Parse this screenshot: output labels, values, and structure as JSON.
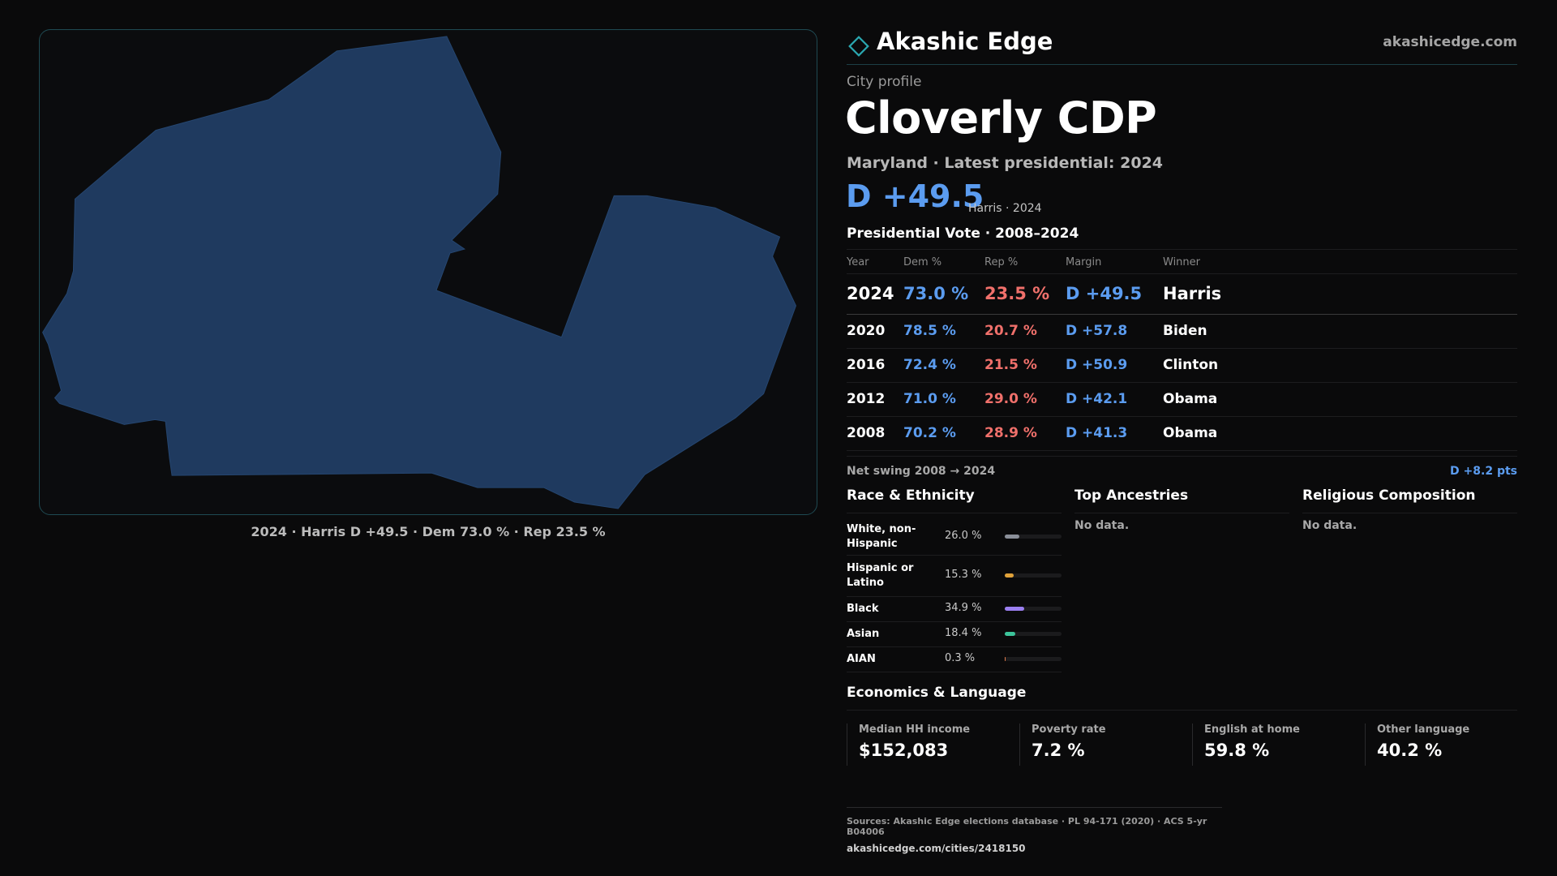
{
  "brand": {
    "name": "Akashic Edge",
    "url": "akashicedge.com"
  },
  "colors": {
    "dem": "#5b9cf0",
    "rep": "#f0706b",
    "accent": "#2aa7b0",
    "map_fill": "#1f3a5f"
  },
  "map": {
    "caption": "2024 · Harris D +49.5 · Dem 73.0 % · Rep 23.5 %"
  },
  "profile": {
    "kicker": "City profile",
    "city": "Cloverly CDP",
    "subline": "Maryland · Latest presidential: 2024",
    "margin": "D +49.5",
    "margin_note": "Harris · 2024"
  },
  "votes": {
    "title": "Presidential Vote · 2008–2024",
    "headers": {
      "year": "Year",
      "dem": "Dem %",
      "rep": "Rep %",
      "margin": "Margin",
      "winner": "Winner"
    },
    "rows": [
      {
        "year": "2024",
        "dem": "73.0 %",
        "rep": "23.5 %",
        "margin": "D +49.5",
        "winner": "Harris"
      },
      {
        "year": "2020",
        "dem": "78.5 %",
        "rep": "20.7 %",
        "margin": "D +57.8",
        "winner": "Biden"
      },
      {
        "year": "2016",
        "dem": "72.4 %",
        "rep": "21.5 %",
        "margin": "D +50.9",
        "winner": "Clinton"
      },
      {
        "year": "2012",
        "dem": "71.0 %",
        "rep": "29.0 %",
        "margin": "D +42.1",
        "winner": "Obama"
      },
      {
        "year": "2008",
        "dem": "70.2 %",
        "rep": "28.9 %",
        "margin": "D +41.3",
        "winner": "Obama"
      }
    ],
    "swing_label": "Net swing 2008 → 2024",
    "swing_value": "D +8.2 pts"
  },
  "race": {
    "title": "Race & Ethnicity",
    "items": [
      {
        "label": "White, non-Hispanic",
        "pct": "26.0 %",
        "value": 26.0,
        "color": "#8a8f99"
      },
      {
        "label": "Hispanic or Latino",
        "pct": "15.3 %",
        "value": 15.3,
        "color": "#e0a23a"
      },
      {
        "label": "Black",
        "pct": "34.9 %",
        "value": 34.9,
        "color": "#9b7ff0"
      },
      {
        "label": "Asian",
        "pct": "18.4 %",
        "value": 18.4,
        "color": "#3cc49a"
      },
      {
        "label": "AIAN",
        "pct": "0.3 %",
        "value": 0.3,
        "color": "#e07a4a"
      }
    ]
  },
  "ancestries": {
    "title": "Top Ancestries",
    "empty": "No data."
  },
  "religion": {
    "title": "Religious Composition",
    "empty": "No data."
  },
  "economics": {
    "title": "Economics & Language",
    "stats": [
      {
        "label": "Median HH income",
        "value": "$152,083"
      },
      {
        "label": "Poverty rate",
        "value": "7.2 %"
      },
      {
        "label": "English at home",
        "value": "59.8 %"
      },
      {
        "label": "Other language",
        "value": "40.2 %"
      }
    ]
  },
  "footer": {
    "sources": "Sources: Akashic Edge elections database · PL 94-171 (2020) · ACS 5-yr B04006",
    "link": "akashicedge.com/cities/2418150"
  }
}
